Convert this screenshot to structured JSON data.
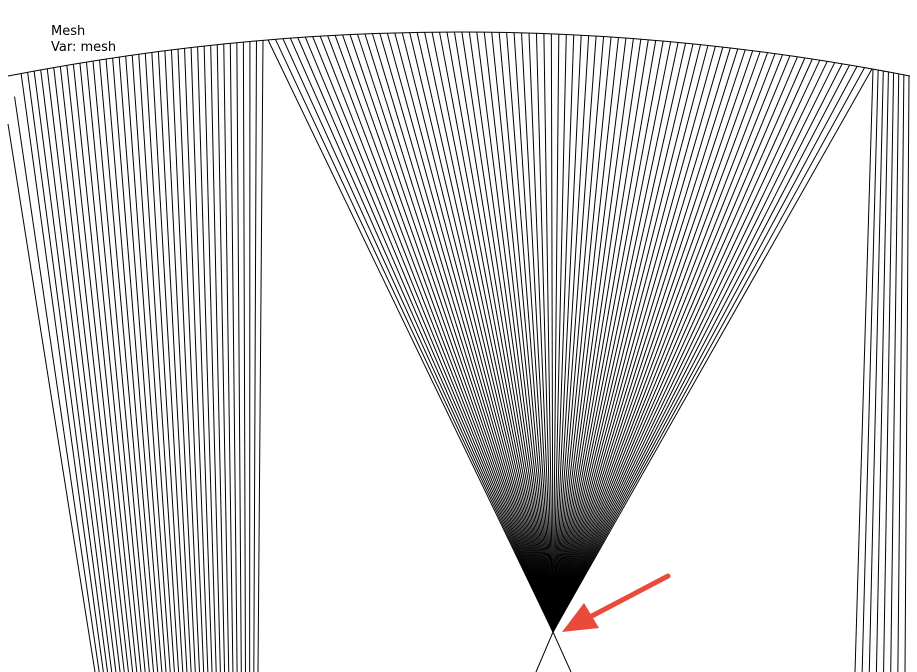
{
  "legend": {
    "title": "Mesh",
    "variable": "Var: mesh"
  }
}
